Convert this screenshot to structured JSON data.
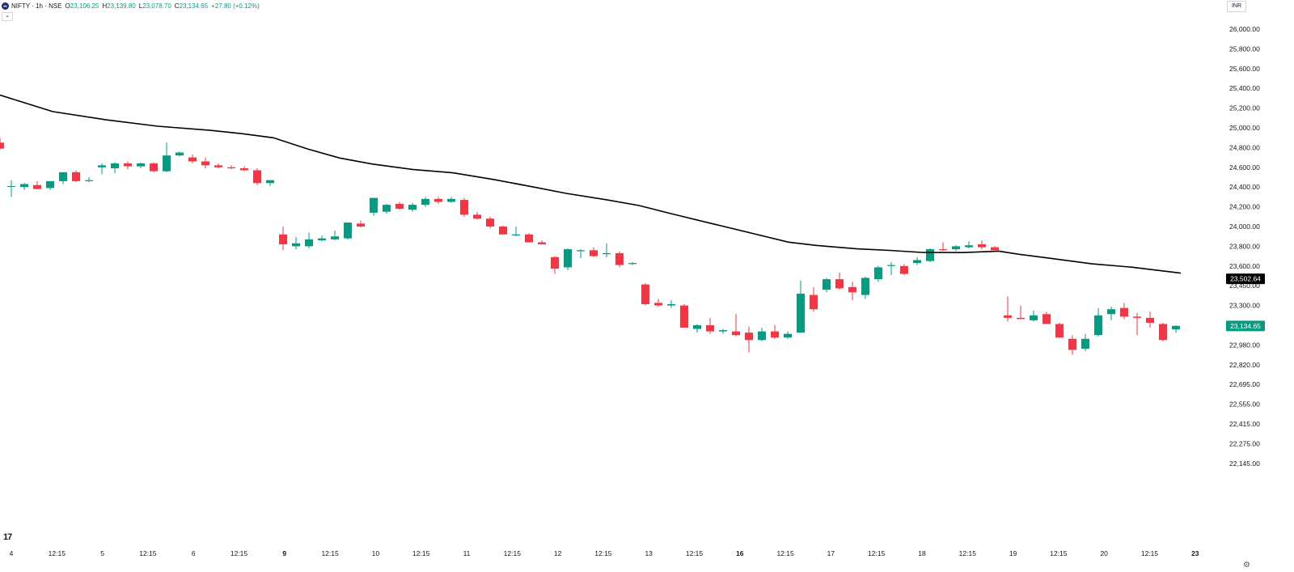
{
  "header": {
    "logo_text": "50",
    "title": "NIFTY · 1h · NSE",
    "open_label": "O",
    "open": "23,106.25",
    "high_label": "H",
    "high": "23,139.80",
    "low_label": "L",
    "low": "23,078.70",
    "close_label": "C",
    "close": "23,134.65",
    "change": "+27.80 (+0.12%)"
  },
  "currency": "INR",
  "tv_logo": "17",
  "collapse_icon": "chevron-down-icon",
  "settings_icon": "gear-icon",
  "colors": {
    "up": "#089981",
    "down": "#f23645",
    "line": "#000000",
    "text": "#131722"
  },
  "chart_data": {
    "type": "candlestick",
    "interval": "1h",
    "price_axis": {
      "ticks": [
        {
          "label": "26,000.00",
          "value": 26000
        },
        {
          "label": "25,800.00",
          "value": 25800
        },
        {
          "label": "25,600.00",
          "value": 25600
        },
        {
          "label": "25,400.00",
          "value": 25400
        },
        {
          "label": "25,200.00",
          "value": 25200
        },
        {
          "label": "25,000.00",
          "value": 25000
        },
        {
          "label": "24,800.00",
          "value": 24800
        },
        {
          "label": "24,600.00",
          "value": 24600
        },
        {
          "label": "24,400.00",
          "value": 24400
        },
        {
          "label": "24,200.00",
          "value": 24200
        },
        {
          "label": "24,000.00",
          "value": 24000
        },
        {
          "label": "23,800.00",
          "value": 23800
        },
        {
          "label": "23,600.00",
          "value": 23600
        },
        {
          "label": "23,450.00",
          "value": 23450
        },
        {
          "label": "23,300.00",
          "value": 23300
        },
        {
          "label": "23,140.00",
          "value": 23140
        },
        {
          "label": "22,980.00",
          "value": 22980
        },
        {
          "label": "22,820.00",
          "value": 22820
        },
        {
          "label": "22,695.00",
          "value": 22695
        },
        {
          "label": "22,555.00",
          "value": 22555
        },
        {
          "label": "22,415.00",
          "value": 22415
        },
        {
          "label": "22,275.00",
          "value": 22275
        },
        {
          "label": "22,145.00",
          "value": 22145
        }
      ]
    },
    "time_axis": {
      "labels": [
        {
          "text": "4",
          "bold": false
        },
        {
          "text": "12:15",
          "bold": false
        },
        {
          "text": "5",
          "bold": false
        },
        {
          "text": "12:15",
          "bold": false
        },
        {
          "text": "6",
          "bold": false
        },
        {
          "text": "12:15",
          "bold": false
        },
        {
          "text": "9",
          "bold": true
        },
        {
          "text": "12:15",
          "bold": false
        },
        {
          "text": "10",
          "bold": false
        },
        {
          "text": "12:15",
          "bold": false
        },
        {
          "text": "11",
          "bold": false
        },
        {
          "text": "12:15",
          "bold": false
        },
        {
          "text": "12",
          "bold": false
        },
        {
          "text": "12:15",
          "bold": false
        },
        {
          "text": "13",
          "bold": false
        },
        {
          "text": "12:15",
          "bold": false
        },
        {
          "text": "16",
          "bold": true
        },
        {
          "text": "12:15",
          "bold": false
        },
        {
          "text": "17",
          "bold": false
        },
        {
          "text": "12:15",
          "bold": false
        },
        {
          "text": "18",
          "bold": false
        },
        {
          "text": "12:15",
          "bold": false
        },
        {
          "text": "19",
          "bold": false
        },
        {
          "text": "12:15",
          "bold": false
        },
        {
          "text": "20",
          "bold": false
        },
        {
          "text": "12:15",
          "bold": false
        },
        {
          "text": "23",
          "bold": true
        }
      ]
    },
    "candles": [
      {
        "o": 24850,
        "h": 24900,
        "l": 24780,
        "c": 24790
      },
      {
        "o": 24410,
        "h": 24470,
        "l": 24300,
        "c": 24410
      },
      {
        "o": 24400,
        "h": 24440,
        "l": 24370,
        "c": 24430
      },
      {
        "o": 24420,
        "h": 24460,
        "l": 24380,
        "c": 24380
      },
      {
        "o": 24390,
        "h": 24450,
        "l": 24370,
        "c": 24460
      },
      {
        "o": 24460,
        "h": 24550,
        "l": 24430,
        "c": 24550
      },
      {
        "o": 24550,
        "h": 24570,
        "l": 24450,
        "c": 24460
      },
      {
        "o": 24460,
        "h": 24500,
        "l": 24450,
        "c": 24470
      },
      {
        "o": 24600,
        "h": 24640,
        "l": 24530,
        "c": 24620
      },
      {
        "o": 24590,
        "h": 24650,
        "l": 24540,
        "c": 24640
      },
      {
        "o": 24640,
        "h": 24660,
        "l": 24580,
        "c": 24610
      },
      {
        "o": 24610,
        "h": 24650,
        "l": 24590,
        "c": 24640
      },
      {
        "o": 24640,
        "h": 24650,
        "l": 24550,
        "c": 24560
      },
      {
        "o": 24560,
        "h": 24850,
        "l": 24550,
        "c": 24720
      },
      {
        "o": 24720,
        "h": 24760,
        "l": 24710,
        "c": 24750
      },
      {
        "o": 24700,
        "h": 24730,
        "l": 24640,
        "c": 24660
      },
      {
        "o": 24660,
        "h": 24700,
        "l": 24590,
        "c": 24620
      },
      {
        "o": 24620,
        "h": 24640,
        "l": 24590,
        "c": 24600
      },
      {
        "o": 24600,
        "h": 24620,
        "l": 24580,
        "c": 24590
      },
      {
        "o": 24590,
        "h": 24610,
        "l": 24560,
        "c": 24570
      },
      {
        "o": 24570,
        "h": 24590,
        "l": 24420,
        "c": 24440
      },
      {
        "o": 24440,
        "h": 24470,
        "l": 24410,
        "c": 24470
      },
      {
        "o": 23920,
        "h": 24000,
        "l": 23760,
        "c": 23820
      },
      {
        "o": 23800,
        "h": 23890,
        "l": 23770,
        "c": 23830
      },
      {
        "o": 23800,
        "h": 23940,
        "l": 23780,
        "c": 23870
      },
      {
        "o": 23860,
        "h": 23910,
        "l": 23850,
        "c": 23880
      },
      {
        "o": 23870,
        "h": 23960,
        "l": 23860,
        "c": 23900
      },
      {
        "o": 23880,
        "h": 24040,
        "l": 23870,
        "c": 24040
      },
      {
        "o": 24030,
        "h": 24060,
        "l": 23990,
        "c": 24000
      },
      {
        "o": 24140,
        "h": 24290,
        "l": 24110,
        "c": 24290
      },
      {
        "o": 24150,
        "h": 24230,
        "l": 24130,
        "c": 24220
      },
      {
        "o": 24230,
        "h": 24250,
        "l": 24170,
        "c": 24180
      },
      {
        "o": 24170,
        "h": 24240,
        "l": 24150,
        "c": 24220
      },
      {
        "o": 24220,
        "h": 24300,
        "l": 24200,
        "c": 24280
      },
      {
        "o": 24280,
        "h": 24300,
        "l": 24230,
        "c": 24250
      },
      {
        "o": 24250,
        "h": 24300,
        "l": 24240,
        "c": 24280
      },
      {
        "o": 24270,
        "h": 24290,
        "l": 24100,
        "c": 24120
      },
      {
        "o": 24120,
        "h": 24150,
        "l": 24070,
        "c": 24080
      },
      {
        "o": 24080,
        "h": 24100,
        "l": 23980,
        "c": 24000
      },
      {
        "o": 24000,
        "h": 24010,
        "l": 23920,
        "c": 23920
      },
      {
        "o": 23910,
        "h": 24000,
        "l": 23900,
        "c": 23920
      },
      {
        "o": 23920,
        "h": 23930,
        "l": 23840,
        "c": 23840
      },
      {
        "o": 23840,
        "h": 23860,
        "l": 23820,
        "c": 23820
      },
      {
        "o": 23690,
        "h": 23700,
        "l": 23540,
        "c": 23580
      },
      {
        "o": 23590,
        "h": 23780,
        "l": 23570,
        "c": 23770
      },
      {
        "o": 23750,
        "h": 23770,
        "l": 23680,
        "c": 23760
      },
      {
        "o": 23760,
        "h": 23790,
        "l": 23690,
        "c": 23700
      },
      {
        "o": 23720,
        "h": 23830,
        "l": 23690,
        "c": 23730
      },
      {
        "o": 23730,
        "h": 23750,
        "l": 23590,
        "c": 23610
      },
      {
        "o": 23620,
        "h": 23640,
        "l": 23610,
        "c": 23630
      },
      {
        "o": 23460,
        "h": 23470,
        "l": 23300,
        "c": 23310
      },
      {
        "o": 23320,
        "h": 23350,
        "l": 23290,
        "c": 23300
      },
      {
        "o": 23300,
        "h": 23340,
        "l": 23280,
        "c": 23310
      },
      {
        "o": 23300,
        "h": 23310,
        "l": 23120,
        "c": 23120
      },
      {
        "o": 23110,
        "h": 23150,
        "l": 23080,
        "c": 23140
      },
      {
        "o": 23140,
        "h": 23200,
        "l": 23070,
        "c": 23090
      },
      {
        "o": 23090,
        "h": 23110,
        "l": 23070,
        "c": 23100
      },
      {
        "o": 23090,
        "h": 23230,
        "l": 23050,
        "c": 23060
      },
      {
        "o": 23080,
        "h": 23130,
        "l": 22920,
        "c": 23020
      },
      {
        "o": 23020,
        "h": 23120,
        "l": 23010,
        "c": 23090
      },
      {
        "o": 23090,
        "h": 23140,
        "l": 23030,
        "c": 23040
      },
      {
        "o": 23040,
        "h": 23090,
        "l": 23030,
        "c": 23070
      },
      {
        "o": 23080,
        "h": 23490,
        "l": 23080,
        "c": 23390
      },
      {
        "o": 23380,
        "h": 23440,
        "l": 23250,
        "c": 23270
      },
      {
        "o": 23420,
        "h": 23510,
        "l": 23400,
        "c": 23500
      },
      {
        "o": 23500,
        "h": 23550,
        "l": 23420,
        "c": 23430
      },
      {
        "o": 23440,
        "h": 23480,
        "l": 23340,
        "c": 23400
      },
      {
        "o": 23380,
        "h": 23520,
        "l": 23350,
        "c": 23510
      },
      {
        "o": 23500,
        "h": 23600,
        "l": 23480,
        "c": 23590
      },
      {
        "o": 23600,
        "h": 23640,
        "l": 23530,
        "c": 23610
      },
      {
        "o": 23600,
        "h": 23620,
        "l": 23530,
        "c": 23540
      },
      {
        "o": 23630,
        "h": 23690,
        "l": 23610,
        "c": 23660
      },
      {
        "o": 23650,
        "h": 23780,
        "l": 23640,
        "c": 23770
      },
      {
        "o": 23770,
        "h": 23840,
        "l": 23750,
        "c": 23760
      },
      {
        "o": 23770,
        "h": 23810,
        "l": 23750,
        "c": 23800
      },
      {
        "o": 23790,
        "h": 23850,
        "l": 23780,
        "c": 23810
      },
      {
        "o": 23820,
        "h": 23860,
        "l": 23770,
        "c": 23790
      },
      {
        "o": 23790,
        "h": 23800,
        "l": 23760,
        "c": 23760
      },
      {
        "o": 23220,
        "h": 23370,
        "l": 23170,
        "c": 23200
      },
      {
        "o": 23200,
        "h": 23300,
        "l": 23190,
        "c": 23190
      },
      {
        "o": 23180,
        "h": 23260,
        "l": 23170,
        "c": 23220
      },
      {
        "o": 23230,
        "h": 23250,
        "l": 23150,
        "c": 23150
      },
      {
        "o": 23150,
        "h": 23160,
        "l": 23040,
        "c": 23040
      },
      {
        "o": 23030,
        "h": 23060,
        "l": 22900,
        "c": 22940
      },
      {
        "o": 22950,
        "h": 23070,
        "l": 22930,
        "c": 23030
      },
      {
        "o": 23060,
        "h": 23280,
        "l": 23050,
        "c": 23220
      },
      {
        "o": 23230,
        "h": 23290,
        "l": 23180,
        "c": 23270
      },
      {
        "o": 23280,
        "h": 23320,
        "l": 23190,
        "c": 23210
      },
      {
        "o": 23210,
        "h": 23240,
        "l": 23060,
        "c": 23200
      },
      {
        "o": 23200,
        "h": 23250,
        "l": 23120,
        "c": 23160
      },
      {
        "o": 23150,
        "h": 23160,
        "l": 23010,
        "c": 23020
      },
      {
        "o": 23106.25,
        "h": 23139.8,
        "l": 23078.7,
        "c": 23134.65
      }
    ],
    "ma_line": [
      [
        0,
        25332
      ],
      [
        65,
        25165
      ],
      [
        130,
        25083
      ],
      [
        195,
        25016
      ],
      [
        260,
        24975
      ],
      [
        300,
        24940
      ],
      [
        338,
        24899
      ],
      [
        380,
        24787
      ],
      [
        420,
        24694
      ],
      [
        460,
        24634
      ],
      [
        510,
        24579
      ],
      [
        560,
        24544
      ],
      [
        610,
        24477
      ],
      [
        660,
        24400
      ],
      [
        700,
        24336
      ],
      [
        750,
        24271
      ],
      [
        790,
        24213
      ],
      [
        830,
        24130
      ],
      [
        880,
        24030
      ],
      [
        930,
        23931
      ],
      [
        975,
        23842
      ],
      [
        1010,
        23808
      ],
      [
        1060,
        23774
      ],
      [
        1100,
        23758
      ],
      [
        1140,
        23738
      ],
      [
        1190,
        23736
      ],
      [
        1235,
        23751
      ],
      [
        1260,
        23719
      ],
      [
        1300,
        23677
      ],
      [
        1350,
        23622
      ],
      [
        1400,
        23591
      ],
      [
        1460,
        23546
      ]
    ],
    "ma_last_label": "23,502.64",
    "last_price_label": "23,134.65"
  }
}
